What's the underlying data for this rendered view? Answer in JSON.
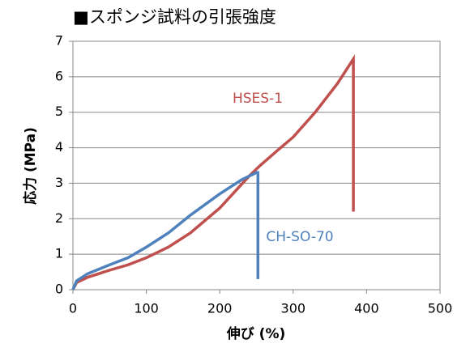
{
  "chart_data": {
    "type": "line",
    "title": "■スポンジ試料の引張強度",
    "x_label": "伸び (%)",
    "y_label": "応力 (MPa)",
    "series": [
      {
        "name": "HSES-1",
        "color": "#c0504d",
        "x": [
          0,
          5,
          20,
          50,
          75,
          100,
          130,
          160,
          200,
          240,
          255,
          280,
          300,
          330,
          360,
          382,
          382
        ],
        "values": [
          0,
          0.2,
          0.35,
          0.55,
          0.7,
          0.9,
          1.2,
          1.6,
          2.3,
          3.2,
          3.5,
          3.95,
          4.3,
          5.0,
          5.8,
          6.5,
          2.2
        ]
      },
      {
        "name": "CH-SO-70",
        "color": "#4f81bd",
        "x": [
          0,
          5,
          20,
          50,
          75,
          100,
          130,
          160,
          200,
          230,
          250,
          252,
          252
        ],
        "values": [
          0,
          0.25,
          0.45,
          0.7,
          0.9,
          1.2,
          1.6,
          2.1,
          2.7,
          3.1,
          3.3,
          3.3,
          0.3
        ]
      }
    ],
    "xlim": [
      0,
      500
    ],
    "xticks": [
      0,
      100,
      200,
      300,
      400,
      500
    ],
    "ylim": [
      0,
      7
    ],
    "yticks": [
      0,
      1,
      2,
      3,
      4,
      5,
      6,
      7
    ],
    "grid": true
  }
}
